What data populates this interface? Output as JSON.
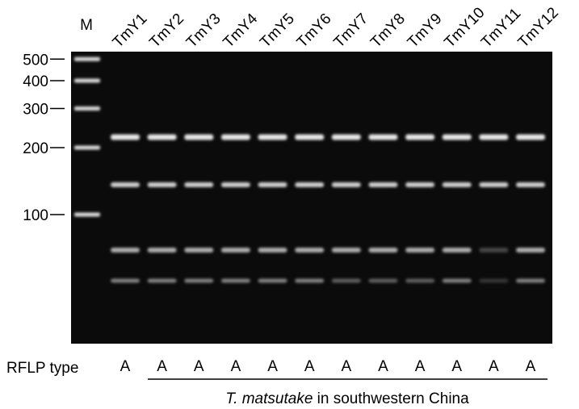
{
  "marker": {
    "label": "M",
    "sizes": [
      500,
      400,
      300,
      200,
      100
    ]
  },
  "lanes": [
    "TmY1",
    "TmY2",
    "TmY3",
    "TmY4",
    "TmY5",
    "TmY6",
    "TmY7",
    "TmY8",
    "TmY9",
    "TmY10",
    "TmY11",
    "TmY12"
  ],
  "row_label": "RFLP type",
  "rflp_types": [
    "A",
    "A",
    "A",
    "A",
    "A",
    "A",
    "A",
    "A",
    "A",
    "A",
    "A",
    "A"
  ],
  "caption": {
    "italic": "T. matsutake",
    "rest": "in southwestern China"
  }
}
